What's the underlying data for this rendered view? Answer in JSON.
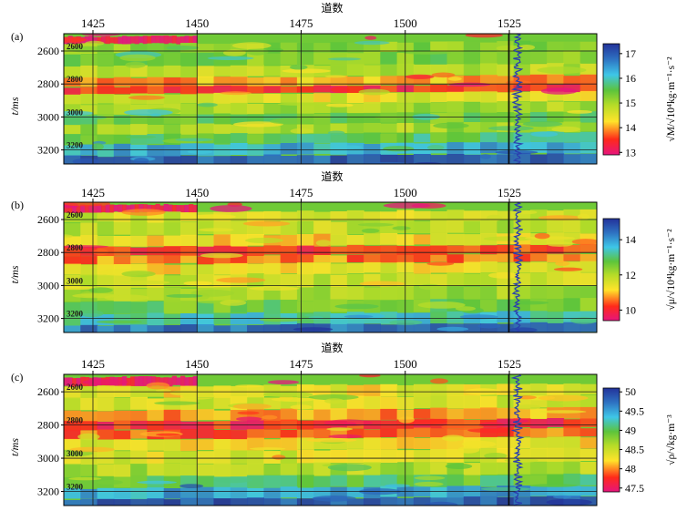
{
  "chart_data": [
    {
      "type": "heatmap",
      "panel_label": "(a)",
      "xlabel": "道数",
      "ylabel": "t/ms",
      "x_ticks": [
        1425,
        1450,
        1475,
        1500,
        1525
      ],
      "xlim": [
        1418,
        1546
      ],
      "y_ticks": [
        2600,
        2800,
        3000,
        3200
      ],
      "ylim": [
        3285,
        2495
      ],
      "inner_labels": [
        "2600",
        "2800",
        "3000",
        "3200"
      ],
      "colorbar": {
        "label": "√M/√10⁴kg·m⁻¹·s⁻²",
        "ticks": [
          13,
          14,
          15,
          16,
          17
        ],
        "range": [
          12.9,
          17.4
        ]
      },
      "well_trace_x": 1527,
      "grid": true,
      "bands": [
        {
          "t": 2520,
          "value": 13.0,
          "span": [
            1418,
            1450
          ]
        },
        {
          "t": 2560,
          "value": 15.2
        },
        {
          "t": 2640,
          "value": 15.3
        },
        {
          "t": 2710,
          "value": 14.8
        },
        {
          "t": 2780,
          "value": 14.0
        },
        {
          "t": 2820,
          "value": 13.4
        },
        {
          "t": 2870,
          "value": 14.5
        },
        {
          "t": 2940,
          "value": 15.0
        },
        {
          "t": 3000,
          "value": 15.4
        },
        {
          "t": 3060,
          "value": 15.0
        },
        {
          "t": 3120,
          "value": 15.6
        },
        {
          "t": 3180,
          "value": 16.3
        },
        {
          "t": 3260,
          "value": 17.0
        }
      ]
    },
    {
      "type": "heatmap",
      "panel_label": "(b)",
      "xlabel": "道数",
      "ylabel": "t/ms",
      "x_ticks": [
        1425,
        1450,
        1475,
        1500,
        1525
      ],
      "xlim": [
        1418,
        1546
      ],
      "y_ticks": [
        2600,
        2800,
        3000,
        3200
      ],
      "ylim": [
        3285,
        2495
      ],
      "inner_labels": [
        "2600",
        "2800",
        "3000",
        "3200"
      ],
      "colorbar": {
        "label": "√μ/√10⁴kg·m⁻¹·s⁻²",
        "ticks": [
          10,
          12,
          14
        ],
        "range": [
          9.4,
          15.2
        ]
      },
      "well_trace_x": 1527,
      "grid": true,
      "bands": [
        {
          "t": 2520,
          "value": 9.6,
          "span": [
            1418,
            1450
          ]
        },
        {
          "t": 2560,
          "value": 11.6
        },
        {
          "t": 2640,
          "value": 11.8
        },
        {
          "t": 2720,
          "value": 11.2
        },
        {
          "t": 2780,
          "value": 10.2
        },
        {
          "t": 2830,
          "value": 10.6
        },
        {
          "t": 2880,
          "value": 11.3
        },
        {
          "t": 2960,
          "value": 11.7
        },
        {
          "t": 3040,
          "value": 12.1
        },
        {
          "t": 3120,
          "value": 12.6
        },
        {
          "t": 3190,
          "value": 13.4
        },
        {
          "t": 3260,
          "value": 14.4
        }
      ]
    },
    {
      "type": "heatmap",
      "panel_label": "(c)",
      "xlabel": "道数",
      "ylabel": "t/ms",
      "x_ticks": [
        1425,
        1450,
        1475,
        1500,
        1525
      ],
      "xlim": [
        1418,
        1546
      ],
      "y_ticks": [
        2600,
        2800,
        3000,
        3200
      ],
      "ylim": [
        3285,
        2495
      ],
      "inner_labels": [
        "2600",
        "2800",
        "3000",
        "3200"
      ],
      "colorbar": {
        "label": "√ρ/√kg·m⁻³",
        "ticks": [
          47.5,
          48.0,
          48.5,
          49.0,
          49.5,
          50.0
        ],
        "range": [
          47.4,
          50.1
        ]
      },
      "well_trace_x": 1527,
      "grid": true,
      "bands": [
        {
          "t": 2520,
          "value": 47.5,
          "span": [
            1418,
            1450
          ]
        },
        {
          "t": 2580,
          "value": 48.3
        },
        {
          "t": 2660,
          "value": 48.4
        },
        {
          "t": 2730,
          "value": 48.0
        },
        {
          "t": 2790,
          "value": 47.7
        },
        {
          "t": 2840,
          "value": 47.9
        },
        {
          "t": 2900,
          "value": 48.3
        },
        {
          "t": 2980,
          "value": 48.4
        },
        {
          "t": 3060,
          "value": 48.6
        },
        {
          "t": 3130,
          "value": 49.0
        },
        {
          "t": 3200,
          "value": 49.5
        },
        {
          "t": 3260,
          "value": 49.9
        }
      ]
    }
  ]
}
